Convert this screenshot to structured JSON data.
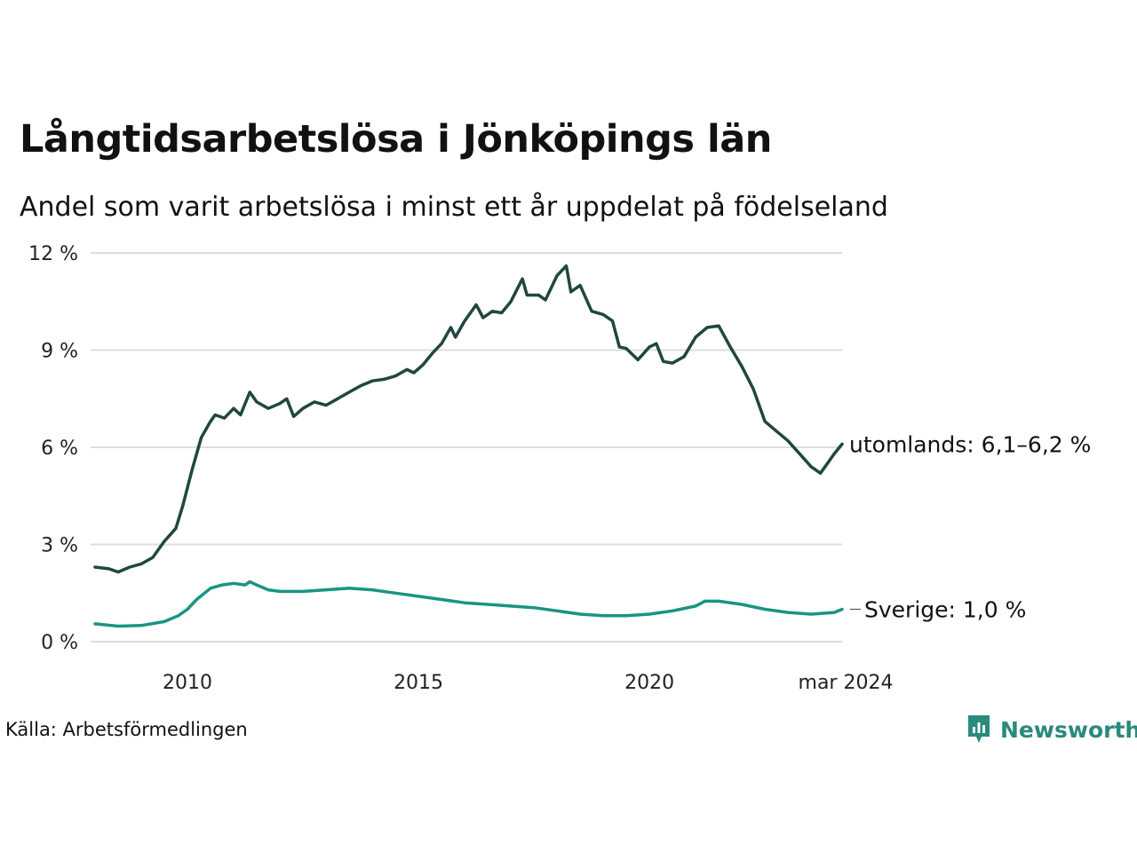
{
  "title": "Långtidsarbetslösa i Jönköpings län",
  "subtitle": "Andel som varit arbetslösa i minst ett år uppdelat på födelseland",
  "source": "Källa: Arbetsförmedlingen",
  "brand": {
    "name": "Newsworthy",
    "color": "#2a8a7c"
  },
  "chart_data": {
    "type": "line",
    "title": "Långtidsarbetslösa i Jönköpings län",
    "subtitle": "Andel som varit arbetslösa i minst ett år uppdelat på födelseland",
    "xlabel": "",
    "ylabel": "",
    "x_range": [
      2008.0,
      2024.17
    ],
    "ylim": [
      0,
      12
    ],
    "y_ticks": [
      0,
      3,
      6,
      9,
      12
    ],
    "y_tick_labels": [
      "0 %",
      "3 %",
      "6 %",
      "9 %",
      "12 %"
    ],
    "x_ticks": [
      2010,
      2015,
      2020,
      2024.17
    ],
    "x_tick_labels": [
      "2010",
      "2015",
      "2020",
      "mar 2024"
    ],
    "grid": true,
    "series": [
      {
        "name": "utomlands",
        "label": "utomlands: 6,1–6,2 %",
        "color": "#1f4740",
        "points": [
          [
            2008.0,
            2.3
          ],
          [
            2008.3,
            2.25
          ],
          [
            2008.5,
            2.15
          ],
          [
            2008.75,
            2.3
          ],
          [
            2009.0,
            2.4
          ],
          [
            2009.25,
            2.6
          ],
          [
            2009.5,
            3.1
          ],
          [
            2009.75,
            3.5
          ],
          [
            2009.9,
            4.2
          ],
          [
            2010.1,
            5.3
          ],
          [
            2010.3,
            6.3
          ],
          [
            2010.5,
            6.8
          ],
          [
            2010.6,
            7.0
          ],
          [
            2010.8,
            6.9
          ],
          [
            2011.0,
            7.2
          ],
          [
            2011.15,
            7.0
          ],
          [
            2011.35,
            7.7
          ],
          [
            2011.5,
            7.4
          ],
          [
            2011.75,
            7.2
          ],
          [
            2012.0,
            7.35
          ],
          [
            2012.15,
            7.5
          ],
          [
            2012.3,
            6.95
          ],
          [
            2012.5,
            7.2
          ],
          [
            2012.75,
            7.4
          ],
          [
            2013.0,
            7.3
          ],
          [
            2013.25,
            7.5
          ],
          [
            2013.5,
            7.7
          ],
          [
            2013.75,
            7.9
          ],
          [
            2014.0,
            8.05
          ],
          [
            2014.25,
            8.1
          ],
          [
            2014.5,
            8.2
          ],
          [
            2014.75,
            8.4
          ],
          [
            2014.9,
            8.3
          ],
          [
            2015.1,
            8.55
          ],
          [
            2015.3,
            8.9
          ],
          [
            2015.5,
            9.2
          ],
          [
            2015.7,
            9.7
          ],
          [
            2015.8,
            9.4
          ],
          [
            2016.0,
            9.9
          ],
          [
            2016.25,
            10.4
          ],
          [
            2016.4,
            10.0
          ],
          [
            2016.6,
            10.2
          ],
          [
            2016.8,
            10.15
          ],
          [
            2017.0,
            10.5
          ],
          [
            2017.25,
            11.2
          ],
          [
            2017.35,
            10.7
          ],
          [
            2017.6,
            10.7
          ],
          [
            2017.75,
            10.55
          ],
          [
            2018.0,
            11.3
          ],
          [
            2018.2,
            11.6
          ],
          [
            2018.3,
            10.8
          ],
          [
            2018.5,
            11.0
          ],
          [
            2018.75,
            10.2
          ],
          [
            2019.0,
            10.1
          ],
          [
            2019.2,
            9.9
          ],
          [
            2019.35,
            9.1
          ],
          [
            2019.5,
            9.05
          ],
          [
            2019.75,
            8.7
          ],
          [
            2020.0,
            9.1
          ],
          [
            2020.15,
            9.2
          ],
          [
            2020.3,
            8.65
          ],
          [
            2020.5,
            8.6
          ],
          [
            2020.75,
            8.8
          ],
          [
            2021.0,
            9.4
          ],
          [
            2021.25,
            9.7
          ],
          [
            2021.5,
            9.75
          ],
          [
            2021.75,
            9.1
          ],
          [
            2022.0,
            8.5
          ],
          [
            2022.25,
            7.8
          ],
          [
            2022.5,
            6.8
          ],
          [
            2022.75,
            6.5
          ],
          [
            2023.0,
            6.2
          ],
          [
            2023.25,
            5.8
          ],
          [
            2023.5,
            5.4
          ],
          [
            2023.7,
            5.2
          ],
          [
            2023.85,
            5.5
          ],
          [
            2024.0,
            5.8
          ],
          [
            2024.17,
            6.1
          ]
        ]
      },
      {
        "name": "Sverige",
        "label": "Sverige: 1,0 %",
        "color": "#1a9484",
        "points": [
          [
            2008.0,
            0.55
          ],
          [
            2008.5,
            0.48
          ],
          [
            2009.0,
            0.5
          ],
          [
            2009.5,
            0.62
          ],
          [
            2009.8,
            0.8
          ],
          [
            2010.0,
            1.0
          ],
          [
            2010.2,
            1.3
          ],
          [
            2010.5,
            1.65
          ],
          [
            2010.75,
            1.75
          ],
          [
            2011.0,
            1.8
          ],
          [
            2011.25,
            1.75
          ],
          [
            2011.35,
            1.85
          ],
          [
            2011.5,
            1.75
          ],
          [
            2011.75,
            1.6
          ],
          [
            2012.0,
            1.55
          ],
          [
            2012.5,
            1.55
          ],
          [
            2013.0,
            1.6
          ],
          [
            2013.5,
            1.65
          ],
          [
            2014.0,
            1.6
          ],
          [
            2014.5,
            1.5
          ],
          [
            2015.0,
            1.4
          ],
          [
            2015.5,
            1.3
          ],
          [
            2016.0,
            1.2
          ],
          [
            2016.5,
            1.15
          ],
          [
            2017.0,
            1.1
          ],
          [
            2017.5,
            1.05
          ],
          [
            2018.0,
            0.95
          ],
          [
            2018.5,
            0.85
          ],
          [
            2019.0,
            0.8
          ],
          [
            2019.5,
            0.8
          ],
          [
            2020.0,
            0.85
          ],
          [
            2020.5,
            0.95
          ],
          [
            2021.0,
            1.1
          ],
          [
            2021.2,
            1.25
          ],
          [
            2021.5,
            1.25
          ],
          [
            2022.0,
            1.15
          ],
          [
            2022.5,
            1.0
          ],
          [
            2023.0,
            0.9
          ],
          [
            2023.5,
            0.85
          ],
          [
            2024.0,
            0.9
          ],
          [
            2024.17,
            1.0
          ]
        ]
      }
    ]
  }
}
